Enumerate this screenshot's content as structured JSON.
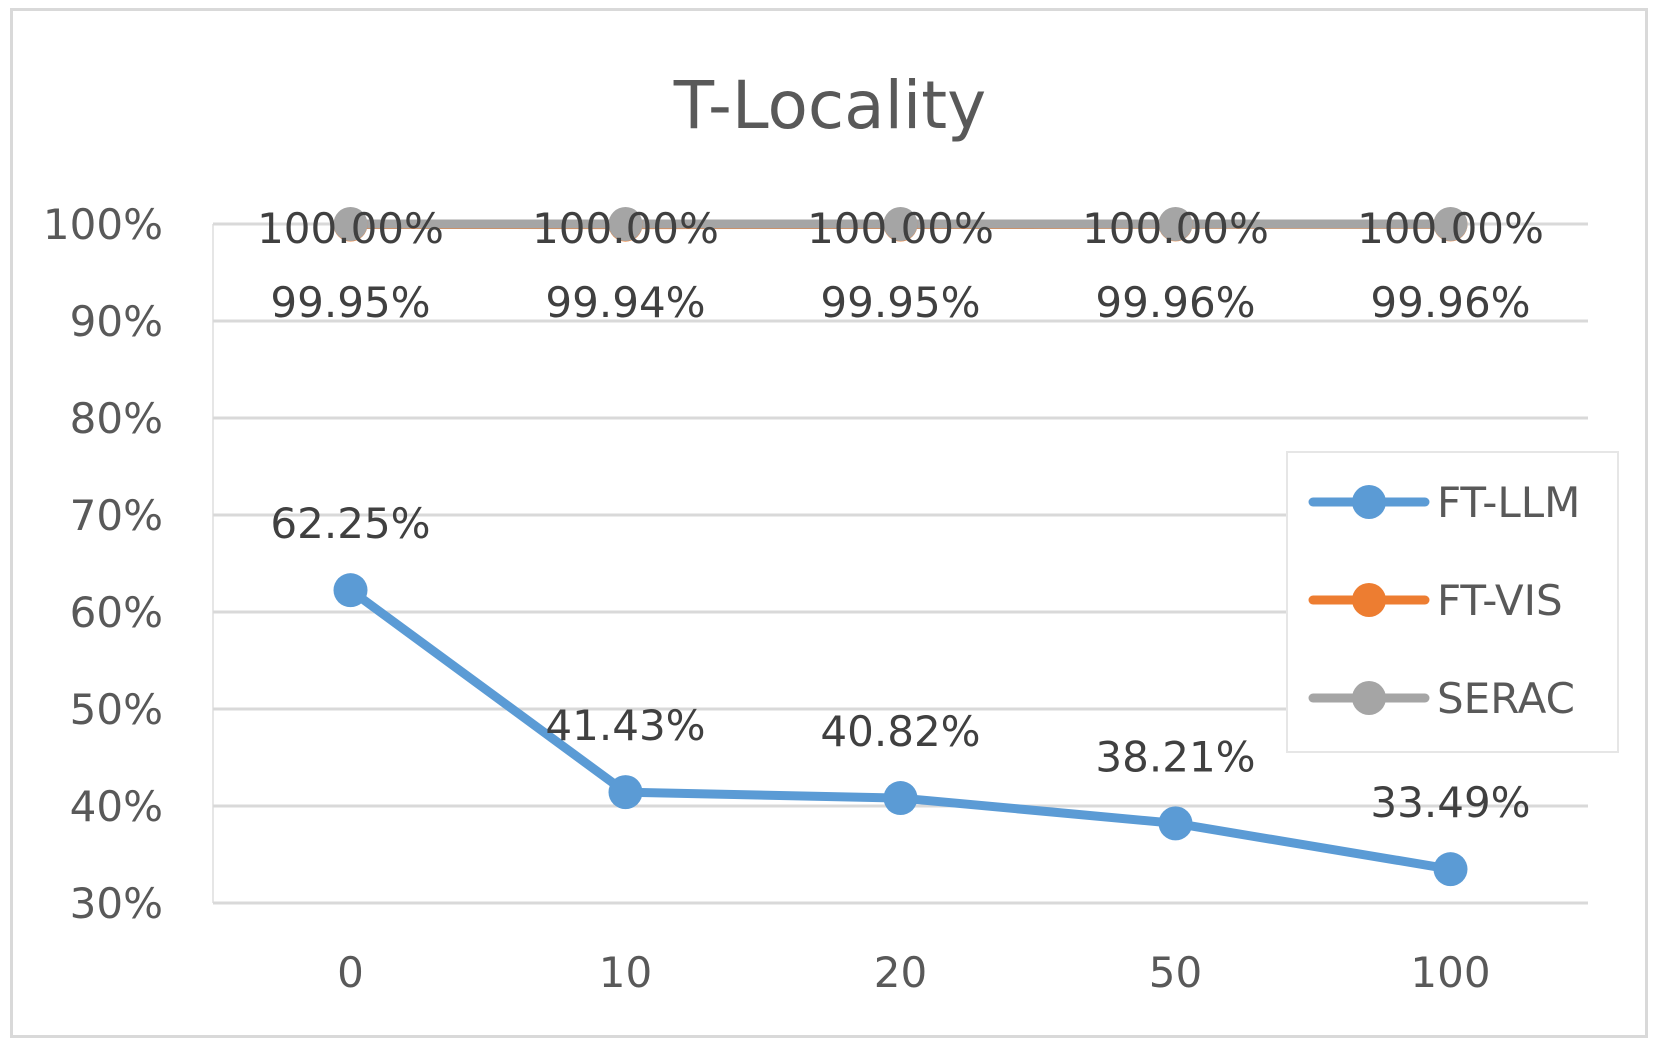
{
  "chart_data": {
    "type": "line",
    "title": "T-Locality",
    "xlabel": "",
    "ylabel": "",
    "categories": [
      "0",
      "10",
      "20",
      "50",
      "100"
    ],
    "ylim": [
      30,
      100
    ],
    "yticks": [
      "30%",
      "40%",
      "50%",
      "60%",
      "70%",
      "80%",
      "90%",
      "100%"
    ],
    "grid": true,
    "legend_position": "right",
    "series": [
      {
        "name": "FT-LLM",
        "color": "#5b9bd5",
        "values": [
          62.25,
          41.43,
          40.82,
          38.21,
          33.49
        ],
        "labels": [
          "62.25%",
          "41.43%",
          "40.82%",
          "38.21%",
          "33.49%"
        ]
      },
      {
        "name": "FT-VIS",
        "color": "#ed7d31",
        "values": [
          99.95,
          99.94,
          99.95,
          99.96,
          99.96
        ],
        "labels": [
          "99.95%",
          "99.94%",
          "99.95%",
          "99.96%",
          "99.96%"
        ]
      },
      {
        "name": "SERAC",
        "color": "#a5a5a5",
        "values": [
          100,
          100,
          100,
          100,
          100
        ],
        "labels": [
          "100.00%",
          "100.00%",
          "100.00%",
          "100.00%",
          "100.00%"
        ]
      }
    ]
  }
}
